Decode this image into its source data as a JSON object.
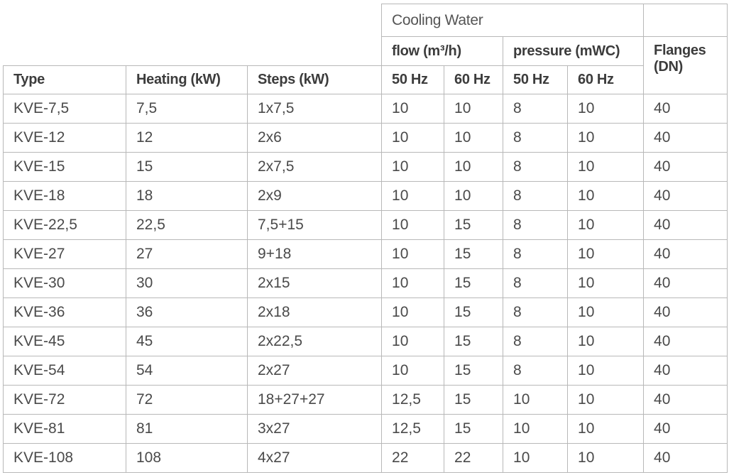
{
  "header": {
    "group": "Cooling Water",
    "subgroups": [
      "flow (m³/h)",
      "pressure (mWC)"
    ],
    "flanges": "Flanges (DN)",
    "columns": [
      "Type",
      "Heating (kW)",
      "Steps (kW)",
      "50 Hz",
      "60 Hz",
      "50 Hz",
      "60 Hz"
    ]
  },
  "table": {
    "rows": [
      [
        "KVE-7,5",
        "7,5",
        "1x7,5",
        "10",
        "10",
        "8",
        "10",
        "40"
      ],
      [
        "KVE-12",
        "12",
        "2x6",
        "10",
        "10",
        "8",
        "10",
        "40"
      ],
      [
        "KVE-15",
        "15",
        "2x7,5",
        "10",
        "10",
        "8",
        "10",
        "40"
      ],
      [
        "KVE-18",
        "18",
        "2x9",
        "10",
        "10",
        "8",
        "10",
        "40"
      ],
      [
        "KVE-22,5",
        "22,5",
        "7,5+15",
        "10",
        "15",
        "8",
        "10",
        "40"
      ],
      [
        "KVE-27",
        "27",
        "9+18",
        "10",
        "15",
        "8",
        "10",
        "40"
      ],
      [
        "KVE-30",
        "30",
        "2x15",
        "10",
        "15",
        "8",
        "10",
        "40"
      ],
      [
        "KVE-36",
        "36",
        "2x18",
        "10",
        "15",
        "8",
        "10",
        "40"
      ],
      [
        "KVE-45",
        "45",
        "2x22,5",
        "10",
        "15",
        "8",
        "10",
        "40"
      ],
      [
        "KVE-54",
        "54",
        "2x27",
        "10",
        "15",
        "8",
        "10",
        "40"
      ],
      [
        "KVE-72",
        "72",
        "18+27+27",
        "12,5",
        "15",
        "10",
        "10",
        "40"
      ],
      [
        "KVE-81",
        "81",
        "3x27",
        "12,5",
        "15",
        "10",
        "10",
        "40"
      ],
      [
        "KVE-108",
        "108",
        "4x27",
        "22",
        "22",
        "10",
        "10",
        "40"
      ]
    ]
  }
}
